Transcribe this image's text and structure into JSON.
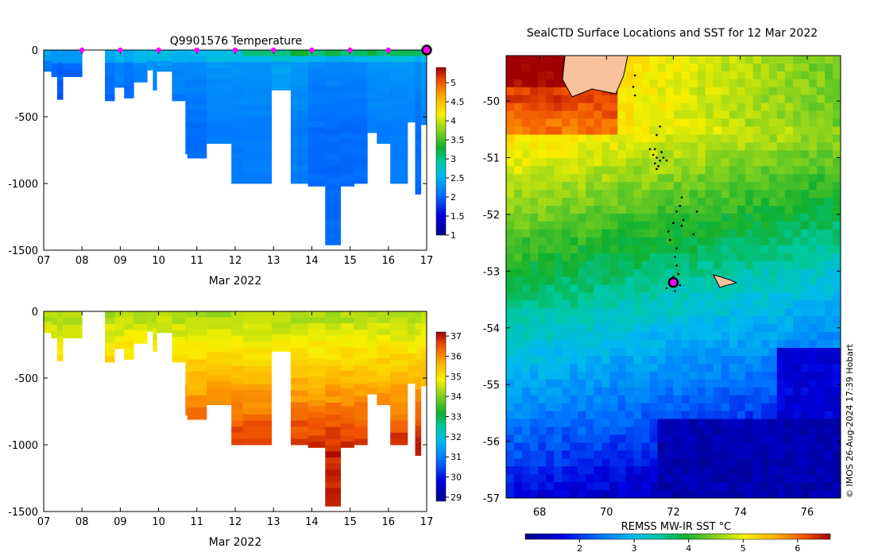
{
  "chart_data": [
    {
      "type": "heatmap",
      "id": "temperature",
      "title": "Q9901576  Temperature",
      "xlabel": "Mar 2022",
      "x_ticks": [
        "07",
        "08",
        "09",
        "10",
        "11",
        "12",
        "13",
        "14",
        "15",
        "16",
        "17"
      ],
      "xlim": [
        7,
        17
      ],
      "ylim": [
        -1500,
        0
      ],
      "y_ticks": [
        0,
        -500,
        -1000,
        -1500
      ],
      "colorbar": {
        "min": 1,
        "max": 5.4,
        "ticks": [
          "1",
          "1.5",
          "2",
          "2.5",
          "3",
          "3.5",
          "4",
          "4.5",
          "5"
        ]
      },
      "surface_markers_x": [
        8,
        9,
        10,
        11,
        12,
        13,
        14,
        15,
        16
      ],
      "latest_marker": {
        "x": 17,
        "depth": 0
      },
      "profiles": [
        {
          "x0": 7.0,
          "x1": 7.2,
          "depth": 160,
          "v": 2.1
        },
        {
          "x0": 7.2,
          "x1": 7.35,
          "depth": 200,
          "v": 2.0
        },
        {
          "x0": 7.35,
          "x1": 7.5,
          "depth": 370,
          "v": 2.0
        },
        {
          "x0": 7.5,
          "x1": 8.0,
          "depth": 200,
          "v": 2.0
        },
        {
          "x0": 8.6,
          "x1": 8.85,
          "depth": 380,
          "v": 2.1
        },
        {
          "x0": 8.85,
          "x1": 9.1,
          "depth": 280,
          "v": 2.2
        },
        {
          "x0": 9.1,
          "x1": 9.35,
          "depth": 360,
          "v": 2.1
        },
        {
          "x0": 9.35,
          "x1": 9.7,
          "depth": 240,
          "v": 2.2
        },
        {
          "x0": 9.7,
          "x1": 9.85,
          "depth": 150,
          "v": 2.3
        },
        {
          "x0": 9.85,
          "x1": 9.95,
          "depth": 300,
          "v": 2.2
        },
        {
          "x0": 9.95,
          "x1": 10.35,
          "depth": 160,
          "v": 2.3
        },
        {
          "x0": 10.35,
          "x1": 10.7,
          "depth": 380,
          "v": 2.2
        },
        {
          "x0": 10.7,
          "x1": 10.75,
          "depth": 780,
          "v": 2.2
        },
        {
          "x0": 10.75,
          "x1": 11.25,
          "depth": 810,
          "v": 2.2
        },
        {
          "x0": 11.25,
          "x1": 11.9,
          "depth": 700,
          "v": 2.3
        },
        {
          "x0": 11.9,
          "x1": 12.2,
          "depth": 1000,
          "v": 2.3
        },
        {
          "x0": 12.2,
          "x1": 12.95,
          "depth": 1000,
          "v": 2.3
        },
        {
          "x0": 12.95,
          "x1": 13.45,
          "depth": 300,
          "v": 2.4
        },
        {
          "x0": 13.45,
          "x1": 13.9,
          "depth": 1000,
          "v": 2.3
        },
        {
          "x0": 13.9,
          "x1": 14.35,
          "depth": 1020,
          "v": 2.2
        },
        {
          "x0": 14.35,
          "x1": 14.75,
          "depth": 1460,
          "v": 2.2
        },
        {
          "x0": 14.75,
          "x1": 15.1,
          "depth": 1020,
          "v": 2.2
        },
        {
          "x0": 15.1,
          "x1": 15.45,
          "depth": 1000,
          "v": 2.2
        },
        {
          "x0": 15.45,
          "x1": 15.7,
          "depth": 620,
          "v": 2.3
        },
        {
          "x0": 15.7,
          "x1": 16.05,
          "depth": 700,
          "v": 2.3
        },
        {
          "x0": 16.05,
          "x1": 16.5,
          "depth": 1000,
          "v": 2.3
        },
        {
          "x0": 16.5,
          "x1": 16.7,
          "depth": 540,
          "v": 2.3
        },
        {
          "x0": 16.7,
          "x1": 16.85,
          "depth": 1080,
          "v": 2.2
        },
        {
          "x0": 16.85,
          "x1": 17.0,
          "depth": 560,
          "v": 2.3
        }
      ]
    },
    {
      "type": "heatmap",
      "id": "salinity",
      "title": "",
      "xlabel": "Mar 2022",
      "x_ticks": [
        "07",
        "08",
        "09",
        "10",
        "11",
        "12",
        "13",
        "14",
        "15",
        "16",
        "17"
      ],
      "xlim": [
        7,
        17
      ],
      "ylim": [
        -1500,
        0
      ],
      "y_ticks": [
        0,
        -500,
        -1000,
        -1500
      ],
      "colorbar": {
        "min": 28.8,
        "max": 37.2,
        "ticks": [
          "29",
          "30",
          "31",
          "32",
          "33",
          "34",
          "35",
          "36",
          "37"
        ]
      },
      "profiles": [
        {
          "x0": 7.0,
          "x1": 7.2,
          "depth": 160
        },
        {
          "x0": 7.2,
          "x1": 7.35,
          "depth": 200
        },
        {
          "x0": 7.35,
          "x1": 7.5,
          "depth": 370
        },
        {
          "x0": 7.5,
          "x1": 8.0,
          "depth": 200
        },
        {
          "x0": 8.6,
          "x1": 8.85,
          "depth": 380
        },
        {
          "x0": 8.85,
          "x1": 9.1,
          "depth": 280
        },
        {
          "x0": 9.1,
          "x1": 9.35,
          "depth": 360
        },
        {
          "x0": 9.35,
          "x1": 9.7,
          "depth": 240
        },
        {
          "x0": 9.7,
          "x1": 9.85,
          "depth": 150
        },
        {
          "x0": 9.85,
          "x1": 9.95,
          "depth": 300
        },
        {
          "x0": 9.95,
          "x1": 10.35,
          "depth": 160
        },
        {
          "x0": 10.35,
          "x1": 10.7,
          "depth": 380
        },
        {
          "x0": 10.7,
          "x1": 10.75,
          "depth": 780
        },
        {
          "x0": 10.75,
          "x1": 11.25,
          "depth": 810
        },
        {
          "x0": 11.25,
          "x1": 11.9,
          "depth": 700
        },
        {
          "x0": 11.9,
          "x1": 12.2,
          "depth": 1000
        },
        {
          "x0": 12.2,
          "x1": 12.95,
          "depth": 1000
        },
        {
          "x0": 12.95,
          "x1": 13.45,
          "depth": 300
        },
        {
          "x0": 13.45,
          "x1": 13.9,
          "depth": 1000
        },
        {
          "x0": 13.9,
          "x1": 14.35,
          "depth": 1020
        },
        {
          "x0": 14.35,
          "x1": 14.75,
          "depth": 1460
        },
        {
          "x0": 14.75,
          "x1": 15.1,
          "depth": 1020
        },
        {
          "x0": 15.1,
          "x1": 15.45,
          "depth": 1000
        },
        {
          "x0": 15.45,
          "x1": 15.7,
          "depth": 620
        },
        {
          "x0": 15.7,
          "x1": 16.05,
          "depth": 700
        },
        {
          "x0": 16.05,
          "x1": 16.5,
          "depth": 1000
        },
        {
          "x0": 16.5,
          "x1": 16.7,
          "depth": 540
        },
        {
          "x0": 16.7,
          "x1": 16.85,
          "depth": 1080
        },
        {
          "x0": 16.85,
          "x1": 17.0,
          "depth": 560
        }
      ]
    },
    {
      "type": "heatmap",
      "id": "sst-map",
      "title": "SealCTD Surface Locations and SST for 12 Mar 2022",
      "xlim": [
        67,
        77
      ],
      "ylim": [
        -57,
        -49.2
      ],
      "x_ticks": [
        "68",
        "70",
        "72",
        "74",
        "76"
      ],
      "x_tick_values": [
        68,
        70,
        72,
        74,
        76
      ],
      "y_ticks": [
        "-50",
        "-51",
        "-52",
        "-53",
        "-54",
        "-55",
        "-56",
        "-57"
      ],
      "y_tick_values": [
        -50,
        -51,
        -52,
        -53,
        -54,
        -55,
        -56,
        -57
      ],
      "colorbar": {
        "label": "REMSS MW-IR SST °C",
        "min": 1,
        "max": 6.6,
        "ticks": [
          "2",
          "3",
          "4",
          "5",
          "6"
        ]
      },
      "credit": "© IMOS 26-Aug-2024 17:39 Hobart",
      "current_position": {
        "lon": 72.0,
        "lat": -53.2
      },
      "track": [
        [
          71.6,
          -50.45
        ],
        [
          71.5,
          -50.6
        ],
        [
          71.45,
          -50.85
        ],
        [
          71.4,
          -50.95
        ],
        [
          71.5,
          -51.0
        ],
        [
          71.6,
          -51.05
        ],
        [
          71.55,
          -51.15
        ],
        [
          71.45,
          -51.1
        ],
        [
          71.65,
          -50.9
        ],
        [
          71.3,
          -50.85
        ],
        [
          71.7,
          -51.0
        ],
        [
          71.8,
          -51.05
        ],
        [
          71.5,
          -51.2
        ],
        [
          72.25,
          -51.7
        ],
        [
          72.2,
          -51.85
        ],
        [
          72.1,
          -51.95
        ],
        [
          72.3,
          -52.1
        ],
        [
          72.25,
          -52.2
        ],
        [
          72.0,
          -52.15
        ],
        [
          71.85,
          -52.3
        ],
        [
          71.9,
          -52.45
        ],
        [
          72.1,
          -52.6
        ],
        [
          72.05,
          -52.75
        ],
        [
          72.1,
          -52.9
        ],
        [
          72.15,
          -53.05
        ],
        [
          72.0,
          -53.1
        ],
        [
          72.2,
          -53.25
        ],
        [
          72.05,
          -53.35
        ],
        [
          71.8,
          -53.3
        ],
        [
          72.6,
          -52.35
        ],
        [
          72.7,
          -51.95
        ],
        [
          70.85,
          -49.55
        ],
        [
          70.8,
          -49.75
        ],
        [
          70.85,
          -49.9
        ]
      ]
    }
  ]
}
